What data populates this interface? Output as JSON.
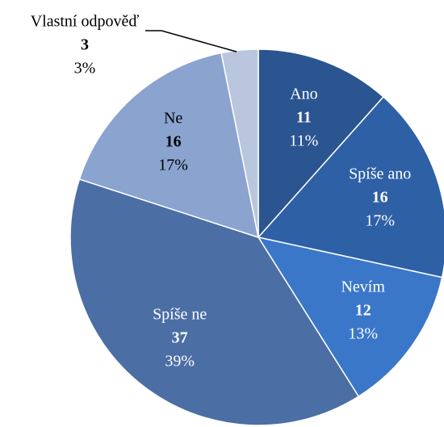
{
  "chart_data": {
    "type": "pie",
    "categories": [
      "Ano",
      "Spíše ano",
      "Nevím",
      "Spíše ne",
      "Ne",
      "Vlastní odpověď"
    ],
    "values": [
      11,
      16,
      12,
      37,
      16,
      3
    ],
    "value_labels": [
      "11%",
      "17%",
      "13%",
      "39%",
      "17%",
      "3%"
    ],
    "colors": [
      "#2b5591",
      "#2e60a6",
      "#3b77c9",
      "#4b6ea5",
      "#8aa3cf",
      "#b9c6de"
    ]
  }
}
